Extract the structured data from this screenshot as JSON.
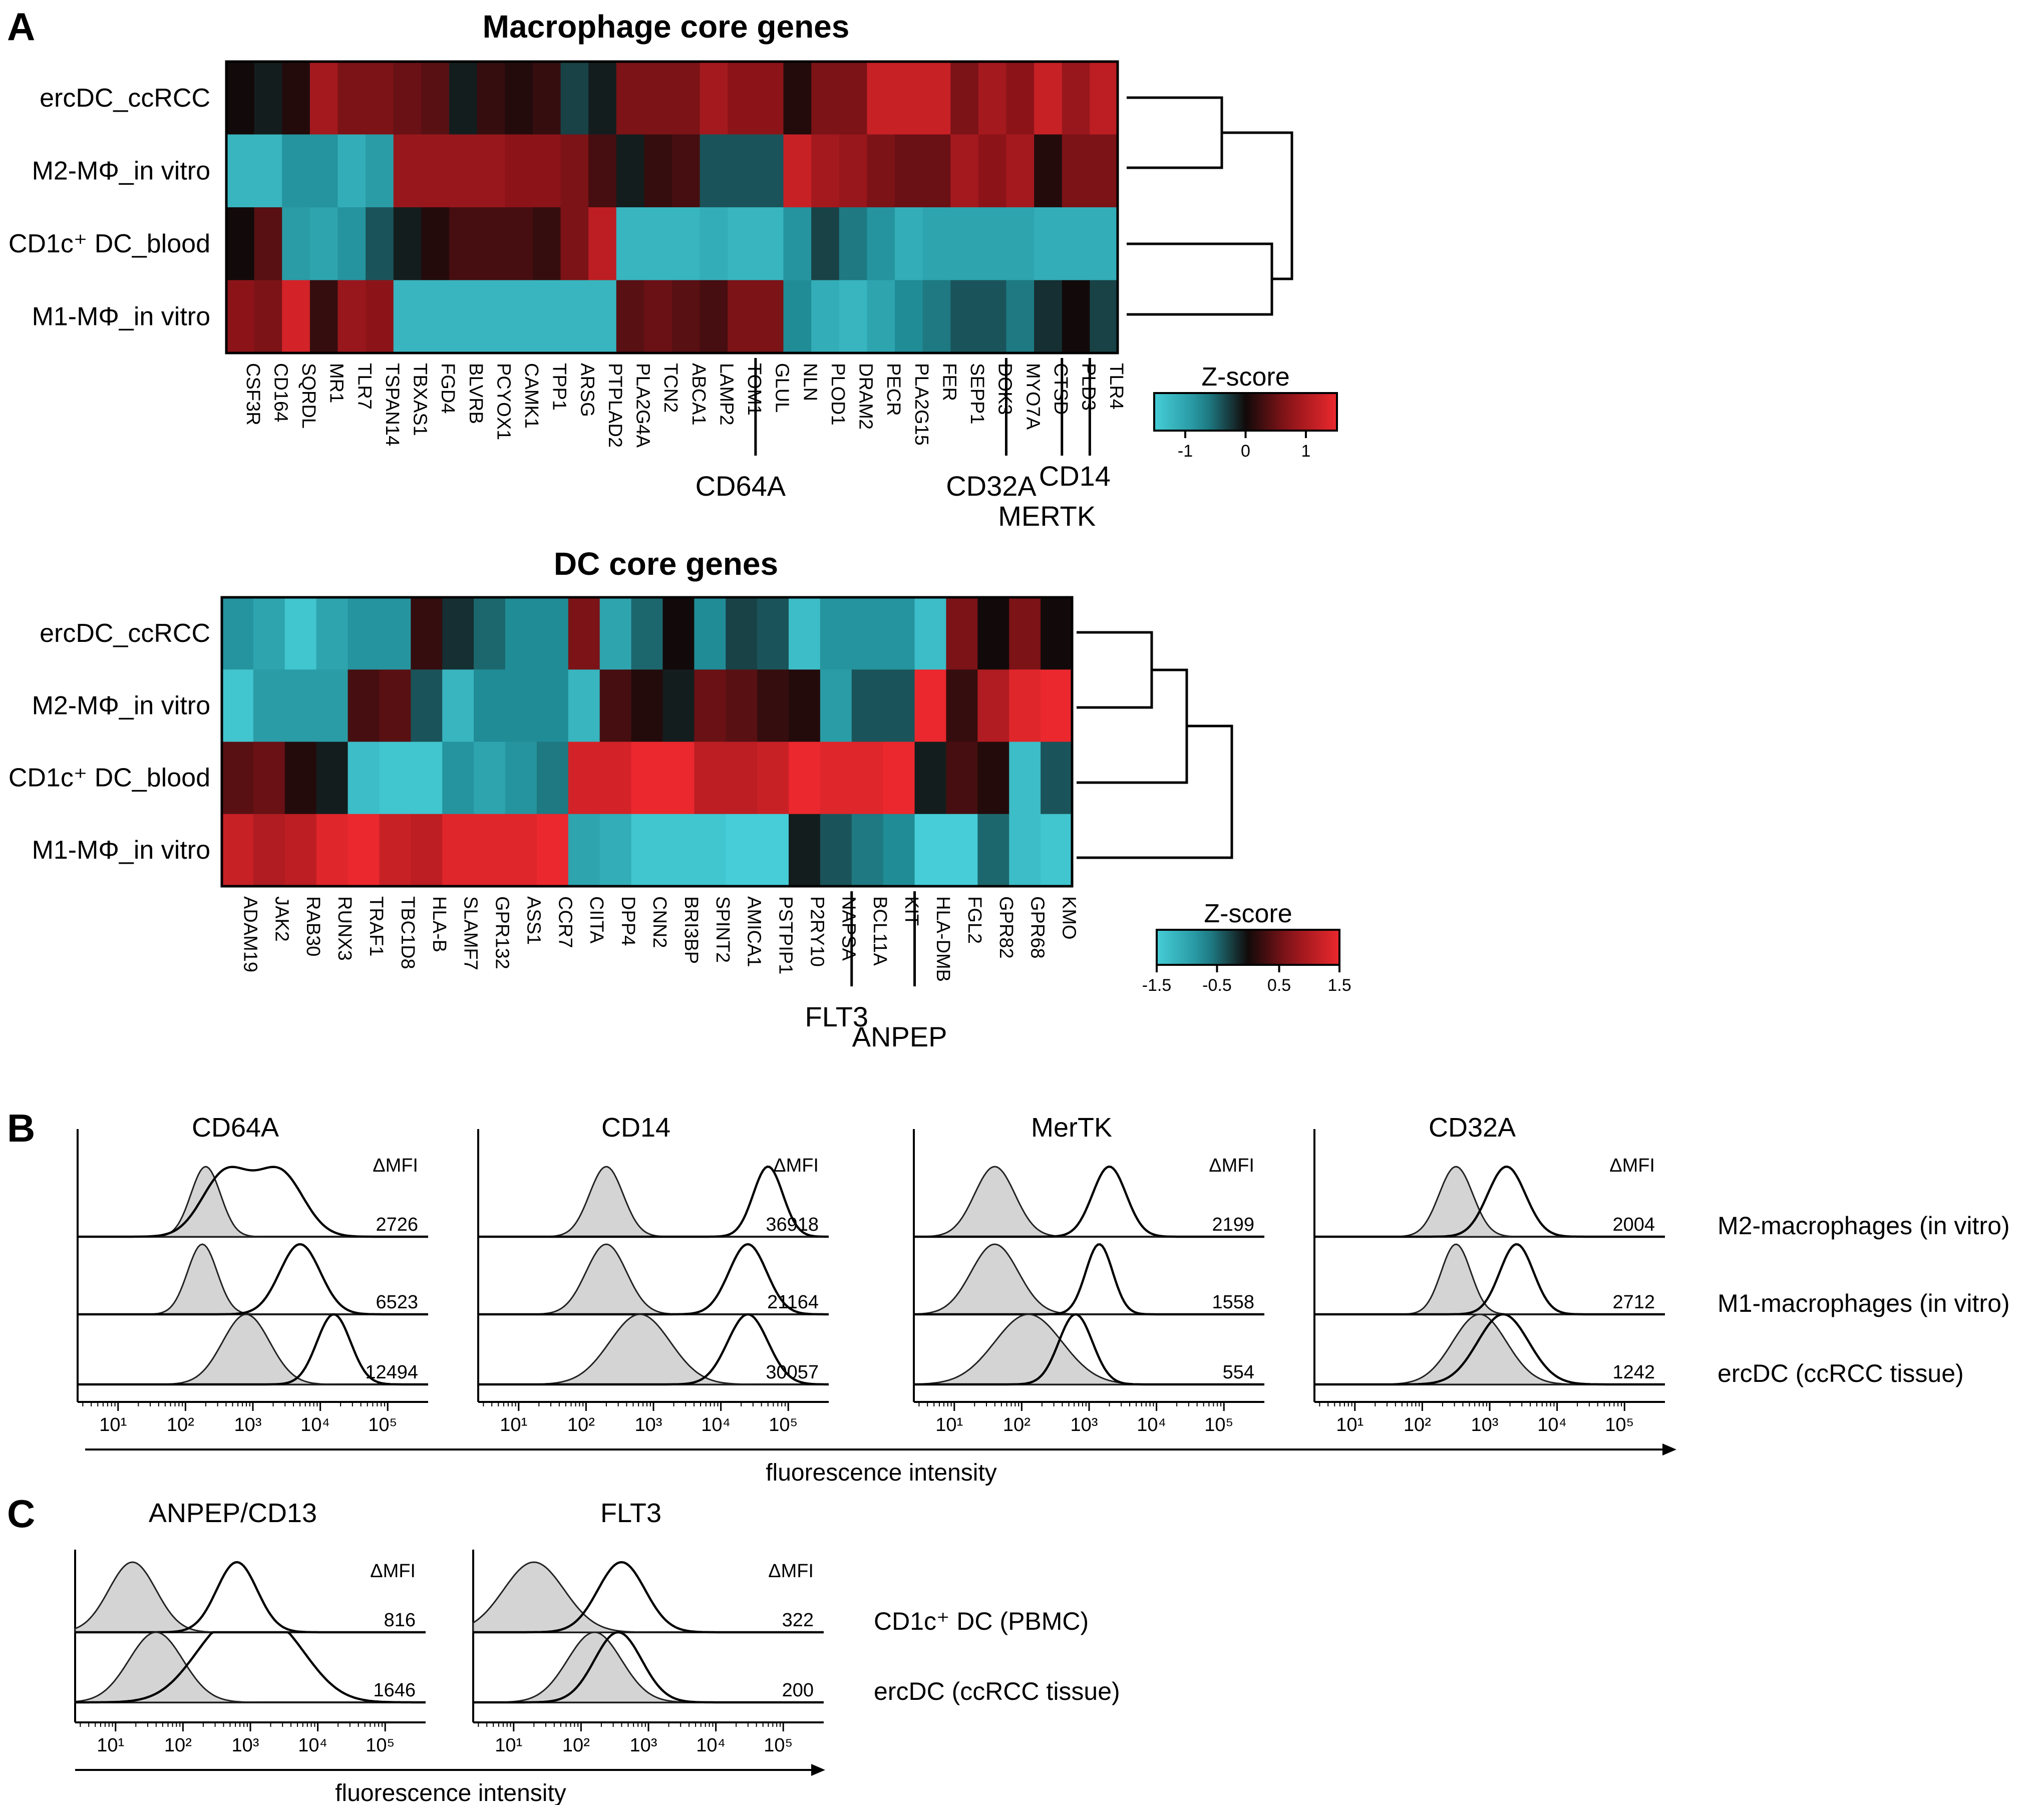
{
  "panels": {
    "a": "A",
    "b": "B",
    "c": "C"
  },
  "heatmaps": [
    {
      "title": "Macrophage core genes",
      "rows": [
        "ercDC_ccRCC",
        "M2-MΦ_in vitro",
        "CD1c⁺ DC_blood",
        "M1-MΦ_in vitro"
      ],
      "genes": [
        "CSF3R",
        "CD164",
        "SQRDL",
        "MR1",
        "TLR7",
        "TSPAN14",
        "TBXAS1",
        "FGD4",
        "BLVRB",
        "PCYOX1",
        "CAMK1",
        "TPP1",
        "ARSG",
        "PTPLAD2",
        "PLA2G4A",
        "TCN2",
        "ABCA1",
        "LAMP2",
        "TOM1",
        "GLUL",
        "NLN",
        "PLOD1",
        "DRAM2",
        "PECR",
        "PLA2G15",
        "FER",
        "SEPP1",
        "DOK3",
        "MYO7A",
        "CTSD",
        "PLD3",
        "TLR4"
      ],
      "values": [
        [
          0.0,
          -0.1,
          0.1,
          0.9,
          0.6,
          0.6,
          0.5,
          0.4,
          -0.1,
          0.2,
          0.1,
          0.2,
          -0.3,
          -0.1,
          0.6,
          0.6,
          0.6,
          0.9,
          0.7,
          0.7,
          0.1,
          0.6,
          0.6,
          1.2,
          1.2,
          1.2,
          0.6,
          0.9,
          0.7,
          1.2,
          0.8,
          1.1
        ],
        [
          -1.2,
          -1.2,
          -0.8,
          -0.8,
          -1.1,
          -0.9,
          0.8,
          0.8,
          0.8,
          0.8,
          0.7,
          0.7,
          0.6,
          0.3,
          -0.1,
          0.2,
          0.3,
          -0.4,
          -0.4,
          -0.4,
          1.2,
          0.9,
          0.8,
          0.6,
          0.5,
          0.5,
          0.9,
          0.7,
          0.9,
          0.1,
          0.6,
          0.6
        ],
        [
          0.0,
          0.4,
          -0.9,
          -1.0,
          -0.8,
          -0.4,
          -0.1,
          0.1,
          0.3,
          0.3,
          0.3,
          0.2,
          0.6,
          1.1,
          -1.2,
          -1.2,
          -1.2,
          -1.1,
          -1.2,
          -1.2,
          -0.8,
          -0.3,
          -0.6,
          -0.8,
          -1.1,
          -1.0,
          -1.0,
          -1.0,
          -1.0,
          -1.1,
          -1.1,
          -1.1
        ],
        [
          0.7,
          0.6,
          1.3,
          0.2,
          0.8,
          0.7,
          -1.2,
          -1.2,
          -1.2,
          -1.2,
          -1.2,
          -1.2,
          -1.2,
          -1.2,
          0.4,
          0.5,
          0.4,
          0.3,
          0.6,
          0.6,
          -0.7,
          -1.1,
          -1.2,
          -1.0,
          -0.7,
          -0.6,
          -0.4,
          -0.4,
          -0.6,
          -0.2,
          0.0,
          -0.3
        ]
      ],
      "groups": [
        {
          "label": "CD64A",
          "after_gene": "TOM1"
        },
        {
          "label": "CD32A",
          "after_gene": "DOK3"
        },
        {
          "label": "MERTK",
          "after_gene": "CTSD"
        },
        {
          "label": "CD14",
          "after_gene": "PLD3"
        }
      ],
      "legend": {
        "title": "Z-score",
        "ticks": [
          "-1",
          "0",
          "1"
        ],
        "range": [
          -1.5,
          1.5
        ]
      }
    },
    {
      "title": "DC core genes",
      "rows": [
        "ercDC_ccRCC",
        "M2-MΦ_in vitro",
        "CD1c⁺ DC_blood",
        "M1-MΦ_in vitro"
      ],
      "genes": [
        "ADAM19",
        "JAK2",
        "RAB30",
        "RUNX3",
        "TRAF1",
        "TBC1D8",
        "HLA-B",
        "SLAMF7",
        "GPR132",
        "ASS1",
        "CCR7",
        "CIITA",
        "DPP4",
        "CNN2",
        "BRI3BP",
        "SPINT2",
        "AMICA1",
        "PSTPIP1",
        "P2RY10",
        "NAPSA",
        "BCL11A",
        "KIT",
        "HLA-DMB",
        "FGL2",
        "GPR82",
        "GPR68",
        "KMO"
      ],
      "values": [
        [
          -0.8,
          -1.0,
          -1.4,
          -1.0,
          -0.8,
          -0.8,
          0.2,
          -0.2,
          -0.5,
          -0.7,
          -0.7,
          0.6,
          -1.0,
          -0.5,
          0.0,
          -0.7,
          -0.3,
          -0.4,
          -1.3,
          -0.8,
          -0.8,
          -0.8,
          -1.3,
          0.6,
          0.0,
          0.6,
          0.0
        ],
        [
          -1.4,
          -0.9,
          -0.9,
          -0.9,
          0.3,
          0.4,
          -0.4,
          -1.2,
          -0.7,
          -0.7,
          -0.7,
          -1.2,
          0.3,
          0.1,
          -0.1,
          0.5,
          0.4,
          0.2,
          0.1,
          -0.9,
          -0.4,
          -0.4,
          1.5,
          0.2,
          1.0,
          1.4,
          1.5
        ],
        [
          0.4,
          0.5,
          0.1,
          -0.1,
          -1.3,
          -1.4,
          -1.4,
          -0.8,
          -1.0,
          -0.8,
          -0.6,
          1.3,
          1.3,
          1.5,
          1.5,
          1.1,
          1.1,
          1.2,
          1.5,
          1.4,
          1.4,
          1.5,
          -0.1,
          0.3,
          0.1,
          -1.3,
          -0.4
        ],
        [
          1.2,
          1.0,
          1.1,
          1.4,
          1.5,
          1.2,
          1.1,
          1.4,
          1.4,
          1.4,
          1.5,
          -1.0,
          -1.1,
          -1.4,
          -1.4,
          -1.4,
          -1.5,
          -1.5,
          -0.1,
          -0.4,
          -0.6,
          -0.7,
          -1.6,
          -1.5,
          -0.5,
          -1.3,
          -1.4
        ]
      ],
      "groups": [
        {
          "label": "FLT3",
          "after_gene": "NAPSA"
        },
        {
          "label": "ANPEP",
          "after_gene": "KIT"
        }
      ],
      "legend": {
        "title": "Z-score",
        "ticks": [
          "-1.5",
          "-0.5",
          "0.5",
          "1.5"
        ],
        "range": [
          -1.5,
          1.5
        ]
      }
    }
  ],
  "flow_b": {
    "markers": [
      "CD64A",
      "CD14",
      "MerTK",
      "CD32A"
    ],
    "dmfi_label": "ΔMFI",
    "conditions": [
      "M2-macrophages (in vitro)",
      "M1-macrophages (in vitro)",
      "ercDC (ccRCC tissue)"
    ],
    "dmfi": [
      [
        "2726",
        "6523",
        "12494"
      ],
      [
        "36918",
        "21164",
        "30057"
      ],
      [
        "2199",
        "1558",
        "554"
      ],
      [
        "2004",
        "2712",
        "1242"
      ]
    ],
    "x_ticks": [
      "10¹",
      "10²",
      "10³",
      "10⁴",
      "10⁵"
    ],
    "xlabel": "fluorescence intensity",
    "xlim_log10": [
      0.4,
      5.6
    ],
    "peaks_log10": [
      [
        [
          {
            "iso": [
              2.3
            ],
            "w": 0.22
          },
          {
            "st": [
              2.6,
              3.4
            ],
            "w": 0.35
          }
        ],
        [
          {
            "iso": [
              2.25
            ],
            "w": 0.22
          },
          {
            "st": [
              3.7
            ],
            "w": 0.3
          }
        ],
        [
          {
            "iso": [
              2.9
            ],
            "w": 0.35
          },
          {
            "st": [
              4.2
            ],
            "w": 0.25
          }
        ]
      ],
      [
        [
          {
            "iso": [
              2.3
            ],
            "w": 0.25
          },
          {
            "st": [
              4.7
            ],
            "w": 0.22
          }
        ],
        [
          {
            "iso": [
              2.3
            ],
            "w": 0.3
          },
          {
            "st": [
              4.4
            ],
            "w": 0.28
          }
        ],
        [
          {
            "iso": [
              2.8
            ],
            "w": 0.45
          },
          {
            "st": [
              4.4
            ],
            "w": 0.3
          }
        ]
      ],
      [
        [
          {
            "iso": [
              1.6
            ],
            "w": 0.3
          },
          {
            "st": [
              3.3
            ],
            "w": 0.25
          }
        ],
        [
          {
            "iso": [
              1.6
            ],
            "w": 0.35
          },
          {
            "st": [
              3.15
            ],
            "w": 0.2
          }
        ],
        [
          {
            "iso": [
              2.1
            ],
            "w": 0.5
          },
          {
            "st": [
              2.8
            ],
            "w": 0.25
          }
        ]
      ],
      [
        [
          {
            "iso": [
              2.5
            ],
            "w": 0.25
          },
          {
            "st": [
              3.25
            ],
            "w": 0.28
          }
        ],
        [
          {
            "iso": [
              2.5
            ],
            "w": 0.22
          },
          {
            "st": [
              3.4
            ],
            "w": 0.25
          }
        ],
        [
          {
            "iso": [
              2.85
            ],
            "w": 0.4
          },
          {
            "st": [
              3.2
            ],
            "w": 0.38
          }
        ]
      ]
    ]
  },
  "flow_c": {
    "markers": [
      "ANPEP/CD13",
      "FLT3"
    ],
    "dmfi_label": "ΔMFI",
    "conditions": [
      "CD1c⁺ DC (PBMC)",
      "ercDC (ccRCC tissue)"
    ],
    "dmfi": [
      [
        "816",
        "1646"
      ],
      [
        "322",
        "200"
      ]
    ],
    "x_ticks": [
      "10¹",
      "10²",
      "10³",
      "10⁴",
      "10⁵"
    ],
    "xlabel": "fluorescence intensity",
    "xlim_log10": [
      0.4,
      5.6
    ],
    "peaks_log10": [
      [
        [
          {
            "iso": [
              1.25
            ],
            "w": 0.35
          },
          {
            "st": [
              2.8
            ],
            "w": 0.3
          }
        ],
        [
          {
            "iso": [
              1.6
            ],
            "w": 0.4
          },
          {
            "st": [
              2.6,
              3.4
            ],
            "w": 0.5
          }
        ]
      ],
      [
        [
          {
            "iso": [
              1.3
            ],
            "w": 0.45
          },
          {
            "st": [
              2.6
            ],
            "w": 0.35
          }
        ],
        [
          {
            "iso": [
              2.2
            ],
            "w": 0.4
          },
          {
            "st": [
              2.55
            ],
            "w": 0.35
          }
        ]
      ]
    ]
  }
}
